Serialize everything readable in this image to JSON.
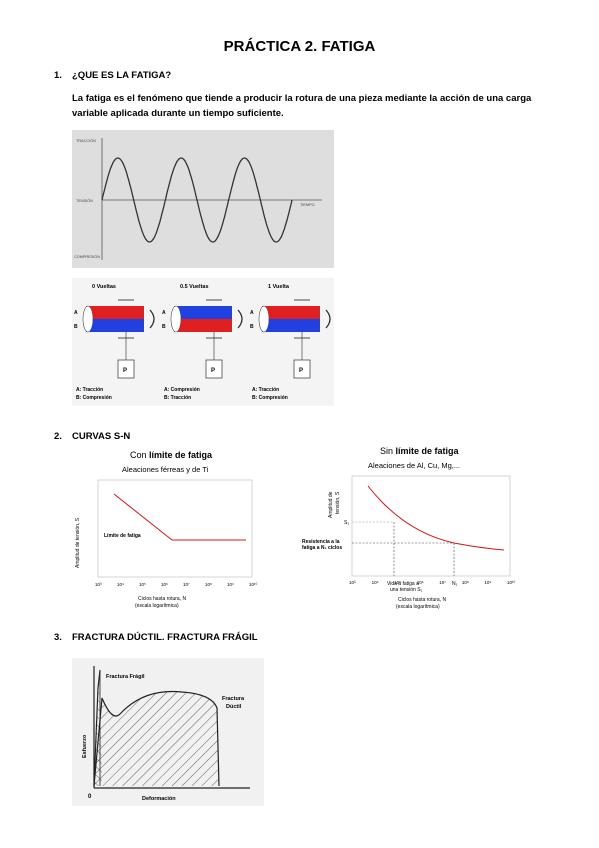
{
  "title": "PRÁCTICA 2. FATIGA",
  "sections": [
    {
      "num": "1.",
      "title": "¿QUE ES LA FATIGA?"
    },
    {
      "num": "2.",
      "title": "CURVAS S-N"
    },
    {
      "num": "3.",
      "title": "FRACTURA DÚCTIL. FRACTURA FRÁGIL"
    }
  ],
  "intro": "La fatiga es el fenómeno que tiende a producir la rotura de una pieza mediante la acción de una carga variable aplicada durante un tiempo suficiente.",
  "wave_fig": {
    "traccion": "TRACCIÓN",
    "tension": "TENSIÓN",
    "compresion": "COMPRESIÓN",
    "tiempo": "TIEMPO"
  },
  "rotation_fig": {
    "panels": [
      {
        "title": "0 Vueltas",
        "legend_a": "A: Tracción",
        "legend_b": "B: Compresión",
        "top_color": "#e02020",
        "bottom_color": "#2040e0"
      },
      {
        "title": "0.5 Vueltas",
        "legend_a": "A: Compresión",
        "legend_b": "B: Tracción",
        "top_color": "#2040e0",
        "bottom_color": "#e02020"
      },
      {
        "title": "1 Vuelta",
        "legend_a": "A: Tracción",
        "legend_b": "B: Compresión",
        "top_color": "#e02020",
        "bottom_color": "#2040e0"
      }
    ],
    "label_a": "A",
    "label_b": "B",
    "label_p": "P"
  },
  "sn_left": {
    "title_prefix": "Con ",
    "title_bold": "límite de fatiga",
    "subtitle": "Aleaciones férreas y de Ti",
    "ylabel": "Amplitud de tensión, S",
    "annotation": "Límite de fatiga",
    "xlabel1": "Ciclos hasta rotura, N",
    "xlabel2": "(escala logarítmica)",
    "ticks": [
      "10³",
      "10⁴",
      "10⁵",
      "10⁶",
      "10⁷",
      "10⁸",
      "10⁹",
      "10¹⁰"
    ]
  },
  "sn_right": {
    "title_prefix": "Sin ",
    "title_bold": "límite de fatiga",
    "subtitle": "Aleaciones de Al, Cu, Mg,...",
    "ylabel1": "Amplitud de",
    "ylabel2": "tensión, S",
    "s1": "S₁",
    "annot1": "Resistencia a la",
    "annot2": "fatiga a N₁ ciclos",
    "xann1": "Vida a  fatiga a",
    "xann2": "una tensión S₁",
    "n1": "N₁",
    "xlabel1": "Ciclos hasta rotura, N",
    "xlabel2": "(escala logarítmica)",
    "ticks": [
      "10³",
      "10⁴",
      "10⁵",
      "10⁶",
      "10⁷",
      "10⁸",
      "10⁹",
      "10¹⁰"
    ]
  },
  "fracture_fig": {
    "fragil": "Fractura Frágil",
    "ductil1": "Fractura",
    "ductil2": "Dúctil",
    "ylabel": "Esfuerzo",
    "xlabel": "Deformación",
    "origin": "0"
  }
}
